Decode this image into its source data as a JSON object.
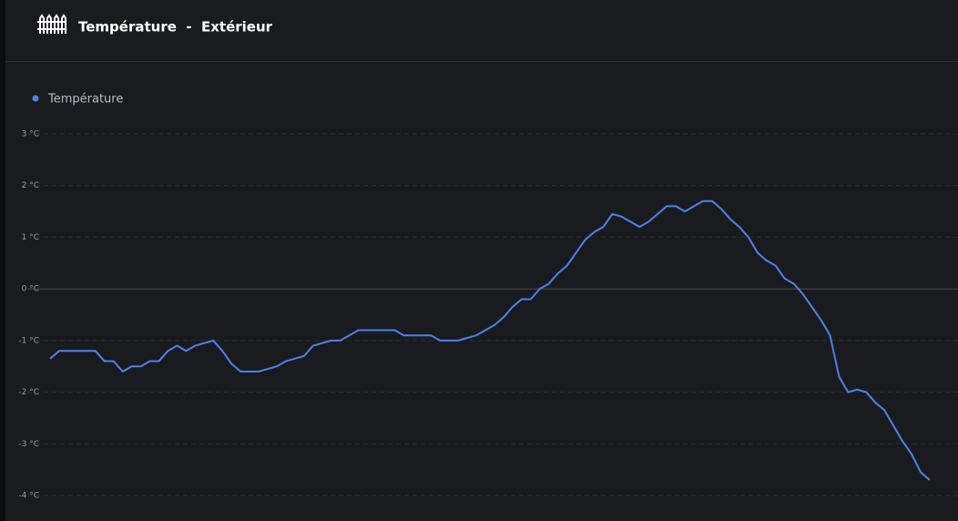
{
  "chart_data": {
    "type": "line",
    "title": "Température  -  Extérieur",
    "series": [
      {
        "name": "Température",
        "color": "#4d82ec",
        "values": [
          -1.35,
          -1.2,
          -1.2,
          -1.2,
          -1.2,
          -1.2,
          -1.4,
          -1.4,
          -1.6,
          -1.5,
          -1.5,
          -1.4,
          -1.4,
          -1.2,
          -1.1,
          -1.2,
          -1.1,
          -1.05,
          -1.0,
          -1.2,
          -1.45,
          -1.6,
          -1.6,
          -1.6,
          -1.55,
          -1.5,
          -1.4,
          -1.35,
          -1.3,
          -1.1,
          -1.05,
          -1.0,
          -1.0,
          -0.9,
          -0.8,
          -0.8,
          -0.8,
          -0.8,
          -0.8,
          -0.9,
          -0.9,
          -0.9,
          -0.9,
          -1.0,
          -1.0,
          -1.0,
          -0.95,
          -0.9,
          -0.8,
          -0.7,
          -0.55,
          -0.35,
          -0.2,
          -0.2,
          0.0,
          0.1,
          0.3,
          0.45,
          0.7,
          0.95,
          1.1,
          1.2,
          1.45,
          1.4,
          1.3,
          1.2,
          1.3,
          1.45,
          1.6,
          1.6,
          1.5,
          1.6,
          1.7,
          1.7,
          1.55,
          1.35,
          1.2,
          1.0,
          0.7,
          0.55,
          0.45,
          0.2,
          0.1,
          -0.1,
          -0.35,
          -0.6,
          -0.9,
          -1.7,
          -2.0,
          -1.95,
          -2.0,
          -2.2,
          -2.35,
          -2.65,
          -2.95,
          -3.2,
          -3.55,
          -3.7
        ]
      }
    ],
    "ylim": [
      -4,
      3
    ],
    "yticks": [
      {
        "value": 3,
        "label": "3 °C"
      },
      {
        "value": 2,
        "label": "2 °C"
      },
      {
        "value": 1,
        "label": "1 °C"
      },
      {
        "value": 0,
        "label": "0 °C"
      },
      {
        "value": -1,
        "label": "-1 °C"
      },
      {
        "value": -2,
        "label": "-2 °C"
      },
      {
        "value": -3,
        "label": "-3 °C"
      },
      {
        "value": -4,
        "label": "-4 °C"
      }
    ],
    "grid": true
  }
}
